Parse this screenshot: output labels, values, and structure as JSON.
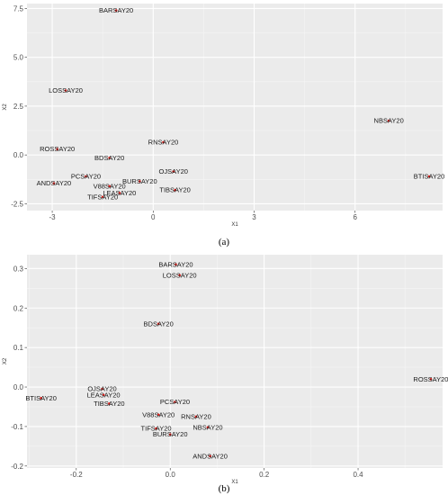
{
  "chart_data": [
    {
      "type": "scatter",
      "caption": "(a)",
      "xlabel": "X1",
      "ylabel": "X2",
      "xlim": [
        -3.75,
        8.6
      ],
      "ylim": [
        -2.85,
        7.75
      ],
      "xticks": [
        -3,
        0,
        3,
        6
      ],
      "yticks": [
        -2.5,
        0.0,
        2.5,
        5.0,
        7.5
      ],
      "ytick_labels": [
        "-2.5",
        "0.0",
        "2.5",
        "5.0",
        "7.5"
      ],
      "grid": true,
      "point_color": "#e8211d",
      "panel_bg": "#ebebeb",
      "points": [
        {
          "label": "BARSAY20",
          "x": -1.1,
          "y": 7.4
        },
        {
          "label": "LOSSAY20",
          "x": -2.6,
          "y": 3.3
        },
        {
          "label": "NBSAY20",
          "x": 7.0,
          "y": 1.75
        },
        {
          "label": "RNSAY20",
          "x": 0.3,
          "y": 0.65
        },
        {
          "label": "ROSSAY20",
          "x": -2.85,
          "y": 0.3
        },
        {
          "label": "BDSAY20",
          "x": -1.3,
          "y": -0.15
        },
        {
          "label": "OJSAY20",
          "x": 0.6,
          "y": -0.85
        },
        {
          "label": "BTISAY20",
          "x": 8.2,
          "y": -1.1
        },
        {
          "label": "PCSAY20",
          "x": -2.0,
          "y": -1.1
        },
        {
          "label": "BURSAY20",
          "x": -0.4,
          "y": -1.35
        },
        {
          "label": "ANDSAY20",
          "x": -2.95,
          "y": -1.45
        },
        {
          "label": "V88SAY20",
          "x": -1.3,
          "y": -1.6
        },
        {
          "label": "TIBSAY20",
          "x": 0.65,
          "y": -1.8
        },
        {
          "label": "LEASAY20",
          "x": -1.0,
          "y": -1.95
        },
        {
          "label": "TIFSAY20",
          "x": -1.5,
          "y": -2.15
        }
      ]
    },
    {
      "type": "scatter",
      "caption": "(b)",
      "xlabel": "X1",
      "ylabel": "X2",
      "xlim": [
        -0.305,
        0.58
      ],
      "ylim": [
        -0.205,
        0.335
      ],
      "xticks": [
        -0.2,
        0.0,
        0.2,
        0.4
      ],
      "xtick_labels": [
        "-0.2",
        "0.0",
        "0.2",
        "0.4"
      ],
      "yticks": [
        -0.2,
        -0.1,
        0.0,
        0.1,
        0.2,
        0.3
      ],
      "ytick_labels": [
        "-0.2",
        "-0.1",
        "0.0",
        "0.1",
        "0.2",
        "0.3"
      ],
      "grid": true,
      "point_color": "#e8211d",
      "panel_bg": "#ebebeb",
      "points": [
        {
          "label": "BARSAY20",
          "x": 0.012,
          "y": 0.31
        },
        {
          "label": "LOSSAY20",
          "x": 0.02,
          "y": 0.283
        },
        {
          "label": "BDSAY20",
          "x": -0.025,
          "y": 0.16
        },
        {
          "label": "ROSSAY20",
          "x": 0.555,
          "y": 0.02
        },
        {
          "label": "OJSAY20",
          "x": -0.145,
          "y": -0.005
        },
        {
          "label": "BTISAY20",
          "x": -0.275,
          "y": -0.028
        },
        {
          "label": "LEASAY20",
          "x": -0.142,
          "y": -0.02
        },
        {
          "label": "TIBSAY20",
          "x": -0.13,
          "y": -0.042
        },
        {
          "label": "PCSAY20",
          "x": 0.01,
          "y": -0.038
        },
        {
          "label": "RNSAY20",
          "x": 0.055,
          "y": -0.075
        },
        {
          "label": "V88SAY20",
          "x": -0.025,
          "y": -0.07
        },
        {
          "label": "NBSAY20",
          "x": 0.08,
          "y": -0.102
        },
        {
          "label": "TIFSAY20",
          "x": -0.03,
          "y": -0.105
        },
        {
          "label": "BURSAY20",
          "x": 0.0,
          "y": -0.12
        },
        {
          "label": "ANDSAY20",
          "x": 0.085,
          "y": -0.175
        }
      ]
    }
  ]
}
